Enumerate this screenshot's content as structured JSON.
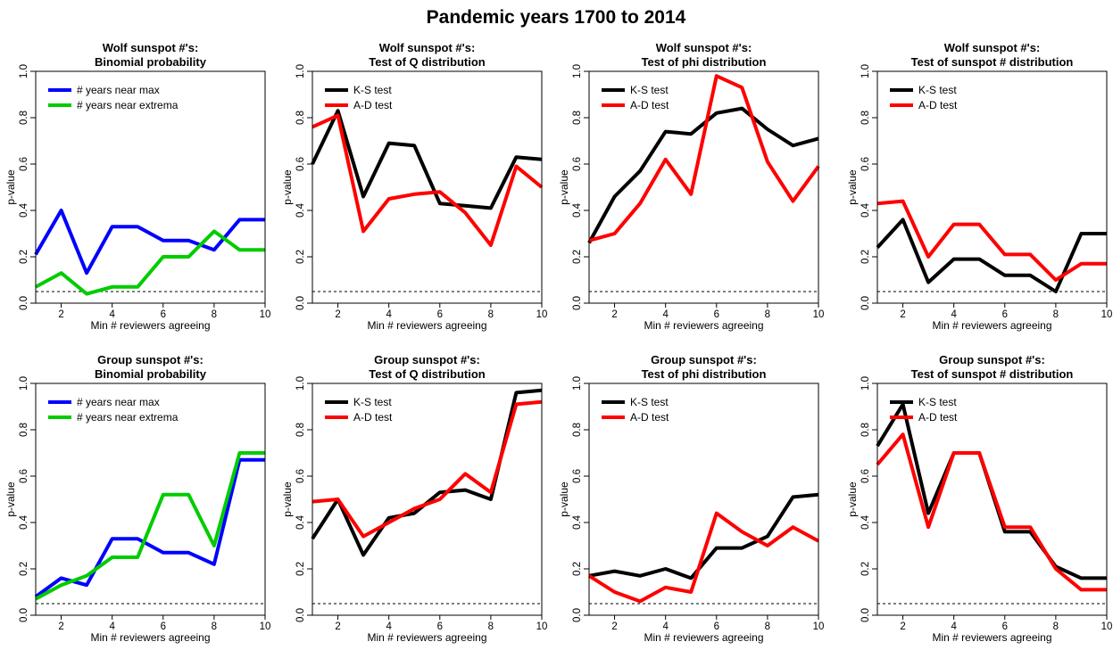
{
  "suptitle": "Pandemic years 1700 to 2014",
  "threshold_color": "#000000",
  "chart_data": [
    {
      "type": "line",
      "title": [
        "Wolf sunspot #'s:",
        "Binomial probability"
      ],
      "xlabel": "Min # reviewers agreeing",
      "ylabel": "p-value",
      "xlim": [
        1,
        10
      ],
      "ylim": [
        0,
        1
      ],
      "xticks": [
        2,
        4,
        6,
        8,
        10
      ],
      "yticks": [
        0.0,
        0.2,
        0.4,
        0.6,
        0.8,
        1.0
      ],
      "yticklabels": [
        "0.0",
        "0.2",
        "0.4",
        "0.6",
        "0.8",
        "1.0"
      ],
      "xticklabels": [
        "2",
        "4",
        "6",
        "8",
        "10"
      ],
      "threshold": 0.05,
      "x": [
        1,
        2,
        3,
        4,
        5,
        6,
        7,
        8,
        9,
        10
      ],
      "series": [
        {
          "name": "# years near max",
          "color": "#0000ff",
          "values": [
            0.21,
            0.4,
            0.13,
            0.33,
            0.33,
            0.27,
            0.27,
            0.23,
            0.36,
            0.36
          ]
        },
        {
          "name": "# years near extrema",
          "color": "#00cc00",
          "values": [
            0.07,
            0.13,
            0.04,
            0.07,
            0.07,
            0.2,
            0.2,
            0.31,
            0.23,
            0.23
          ]
        }
      ]
    },
    {
      "type": "line",
      "title": [
        "Wolf sunspot #'s:",
        "Test of Q distribution"
      ],
      "xlabel": "Min # reviewers agreeing",
      "ylabel": "p-value",
      "xlim": [
        1,
        10
      ],
      "ylim": [
        0,
        1
      ],
      "xticks": [
        2,
        4,
        6,
        8,
        10
      ],
      "yticks": [
        0.0,
        0.2,
        0.4,
        0.6,
        0.8,
        1.0
      ],
      "yticklabels": [
        "0.0",
        "0.2",
        "0.4",
        "0.6",
        "0.8",
        "1.0"
      ],
      "xticklabels": [
        "2",
        "4",
        "6",
        "8",
        "10"
      ],
      "threshold": 0.05,
      "x": [
        1,
        2,
        3,
        4,
        5,
        6,
        7,
        8,
        9,
        10
      ],
      "series": [
        {
          "name": "K-S test",
          "color": "#000000",
          "values": [
            0.6,
            0.83,
            0.46,
            0.69,
            0.68,
            0.43,
            0.42,
            0.41,
            0.63,
            0.62
          ]
        },
        {
          "name": "A-D test",
          "color": "#ff0000",
          "values": [
            0.76,
            0.81,
            0.31,
            0.45,
            0.47,
            0.48,
            0.39,
            0.25,
            0.59,
            0.5
          ]
        }
      ]
    },
    {
      "type": "line",
      "title": [
        "Wolf sunspot #'s:",
        "Test of phi distribution"
      ],
      "xlabel": "Min # reviewers agreeing",
      "ylabel": "p-value",
      "xlim": [
        1,
        10
      ],
      "ylim": [
        0,
        1
      ],
      "xticks": [
        2,
        4,
        6,
        8,
        10
      ],
      "yticks": [
        0.0,
        0.2,
        0.4,
        0.6,
        0.8,
        1.0
      ],
      "yticklabels": [
        "0.0",
        "0.2",
        "0.4",
        "0.6",
        "0.8",
        "1.0"
      ],
      "xticklabels": [
        "2",
        "4",
        "6",
        "8",
        "10"
      ],
      "threshold": 0.05,
      "x": [
        1,
        2,
        3,
        4,
        5,
        6,
        7,
        8,
        9,
        10
      ],
      "series": [
        {
          "name": "K-S test",
          "color": "#000000",
          "values": [
            0.26,
            0.46,
            0.57,
            0.74,
            0.73,
            0.82,
            0.84,
            0.75,
            0.68,
            0.71
          ]
        },
        {
          "name": "A-D test",
          "color": "#ff0000",
          "values": [
            0.27,
            0.3,
            0.43,
            0.62,
            0.47,
            0.98,
            0.93,
            0.61,
            0.44,
            0.59
          ]
        }
      ]
    },
    {
      "type": "line",
      "title": [
        "Wolf sunspot #'s:",
        "Test of sunspot # distribution"
      ],
      "xlabel": "Min # reviewers agreeing",
      "ylabel": "p-value",
      "xlim": [
        1,
        10
      ],
      "ylim": [
        0,
        1
      ],
      "xticks": [
        2,
        4,
        6,
        8,
        10
      ],
      "yticks": [
        0.0,
        0.2,
        0.4,
        0.6,
        0.8,
        1.0
      ],
      "yticklabels": [
        "0.0",
        "0.2",
        "0.4",
        "0.6",
        "0.8",
        "1.0"
      ],
      "xticklabels": [
        "2",
        "4",
        "6",
        "8",
        "10"
      ],
      "threshold": 0.05,
      "x": [
        1,
        2,
        3,
        4,
        5,
        6,
        7,
        8,
        9,
        10
      ],
      "series": [
        {
          "name": "K-S test",
          "color": "#000000",
          "values": [
            0.24,
            0.36,
            0.09,
            0.19,
            0.19,
            0.12,
            0.12,
            0.05,
            0.3,
            0.3
          ]
        },
        {
          "name": "A-D test",
          "color": "#ff0000",
          "values": [
            0.43,
            0.44,
            0.2,
            0.34,
            0.34,
            0.21,
            0.21,
            0.1,
            0.17,
            0.17
          ]
        }
      ]
    },
    {
      "type": "line",
      "title": [
        "Group sunspot #'s:",
        "Binomial probability"
      ],
      "xlabel": "Min # reviewers agreeing",
      "ylabel": "p-value",
      "xlim": [
        1,
        10
      ],
      "ylim": [
        0,
        1
      ],
      "xticks": [
        2,
        4,
        6,
        8,
        10
      ],
      "yticks": [
        0.0,
        0.2,
        0.4,
        0.6,
        0.8,
        1.0
      ],
      "yticklabels": [
        "0.0",
        "0.2",
        "0.4",
        "0.6",
        "0.8",
        "1.0"
      ],
      "xticklabels": [
        "2",
        "4",
        "6",
        "8",
        "10"
      ],
      "threshold": 0.05,
      "x": [
        1,
        2,
        3,
        4,
        5,
        6,
        7,
        8,
        9,
        10
      ],
      "series": [
        {
          "name": "# years near max",
          "color": "#0000ff",
          "values": [
            0.08,
            0.16,
            0.13,
            0.33,
            0.33,
            0.27,
            0.27,
            0.22,
            0.67,
            0.67
          ]
        },
        {
          "name": "# years near extrema",
          "color": "#00cc00",
          "values": [
            0.07,
            0.13,
            0.17,
            0.25,
            0.25,
            0.52,
            0.52,
            0.3,
            0.7,
            0.7
          ]
        }
      ]
    },
    {
      "type": "line",
      "title": [
        "Group sunspot #'s:",
        "Test of Q distribution"
      ],
      "xlabel": "Min # reviewers agreeing",
      "ylabel": "p-value",
      "xlim": [
        1,
        10
      ],
      "ylim": [
        0,
        1
      ],
      "xticks": [
        2,
        4,
        6,
        8,
        10
      ],
      "yticks": [
        0.0,
        0.2,
        0.4,
        0.6,
        0.8,
        1.0
      ],
      "yticklabels": [
        "0.0",
        "0.2",
        "0.4",
        "0.6",
        "0.8",
        "1.0"
      ],
      "xticklabels": [
        "2",
        "4",
        "6",
        "8",
        "10"
      ],
      "threshold": 0.05,
      "x": [
        1,
        2,
        3,
        4,
        5,
        6,
        7,
        8,
        9,
        10
      ],
      "series": [
        {
          "name": "K-S test",
          "color": "#000000",
          "values": [
            0.33,
            0.5,
            0.26,
            0.42,
            0.44,
            0.53,
            0.54,
            0.5,
            0.96,
            0.97
          ]
        },
        {
          "name": "A-D test",
          "color": "#ff0000",
          "values": [
            0.49,
            0.5,
            0.34,
            0.4,
            0.46,
            0.5,
            0.61,
            0.53,
            0.91,
            0.92
          ]
        }
      ]
    },
    {
      "type": "line",
      "title": [
        "Group sunspot #'s:",
        "Test of phi distribution"
      ],
      "xlabel": "Min # reviewers agreeing",
      "ylabel": "p-value",
      "xlim": [
        1,
        10
      ],
      "ylim": [
        0,
        1
      ],
      "xticks": [
        2,
        4,
        6,
        8,
        10
      ],
      "yticks": [
        0.0,
        0.2,
        0.4,
        0.6,
        0.8,
        1.0
      ],
      "yticklabels": [
        "0.0",
        "0.2",
        "0.4",
        "0.6",
        "0.8",
        "1.0"
      ],
      "xticklabels": [
        "2",
        "4",
        "6",
        "8",
        "10"
      ],
      "threshold": 0.05,
      "x": [
        1,
        2,
        3,
        4,
        5,
        6,
        7,
        8,
        9,
        10
      ],
      "series": [
        {
          "name": "K-S test",
          "color": "#000000",
          "values": [
            0.17,
            0.19,
            0.17,
            0.2,
            0.16,
            0.29,
            0.29,
            0.34,
            0.51,
            0.52
          ]
        },
        {
          "name": "A-D test",
          "color": "#ff0000",
          "values": [
            0.17,
            0.1,
            0.06,
            0.12,
            0.1,
            0.44,
            0.36,
            0.3,
            0.38,
            0.32
          ]
        }
      ]
    },
    {
      "type": "line",
      "title": [
        "Group sunspot #'s:",
        "Test of sunspot # distribution"
      ],
      "xlabel": "Min # reviewers agreeing",
      "ylabel": "p-value",
      "xlim": [
        1,
        10
      ],
      "ylim": [
        0,
        1
      ],
      "xticks": [
        2,
        4,
        6,
        8,
        10
      ],
      "yticks": [
        0.0,
        0.2,
        0.4,
        0.6,
        0.8,
        1.0
      ],
      "yticklabels": [
        "0.0",
        "0.2",
        "0.4",
        "0.6",
        "0.8",
        "1.0"
      ],
      "xticklabels": [
        "2",
        "4",
        "6",
        "8",
        "10"
      ],
      "threshold": 0.05,
      "x": [
        1,
        2,
        3,
        4,
        5,
        6,
        7,
        8,
        9,
        10
      ],
      "series": [
        {
          "name": "K-S test",
          "color": "#000000",
          "values": [
            0.73,
            0.91,
            0.44,
            0.7,
            0.7,
            0.36,
            0.36,
            0.21,
            0.16,
            0.16
          ]
        },
        {
          "name": "A-D test",
          "color": "#ff0000",
          "values": [
            0.65,
            0.78,
            0.38,
            0.7,
            0.7,
            0.38,
            0.38,
            0.2,
            0.11,
            0.11
          ]
        }
      ]
    }
  ]
}
